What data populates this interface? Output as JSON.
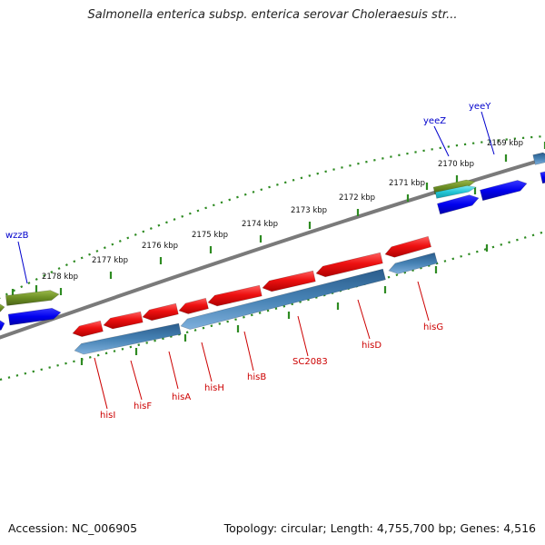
{
  "title": "Salmonella enterica subsp. enterica serovar Choleraesuis str...",
  "accession": "Accession: NC_006905",
  "summary": "Topology: circular; Length: 4,755,700 bp; Genes: 4,516",
  "colors": {
    "backbone": "#808080",
    "tick": "#2e8b22",
    "forward_gene": "#0000ee",
    "olive_gene": "#6b8e23",
    "cyan_gene": "#22c6d6",
    "reverse_gene": "#ee1111",
    "reverse_cds": "#4682b4",
    "label_blue": "#0000cc",
    "label_red": "#cc0000"
  },
  "scale_labels": [
    "2178 kbp",
    "2177 kbp",
    "2176 kbp",
    "2175 kbp",
    "2174 kbp",
    "2173 kbp",
    "2172 kbp",
    "2171 kbp",
    "2170 kbp",
    "2169 kbp"
  ],
  "forward_gene_labels": [
    "wzzB",
    "yeeZ",
    "yeeY"
  ],
  "reverse_gene_labels": [
    "hisI",
    "hisF",
    "hisA",
    "hisH",
    "hisB",
    "SC2083",
    "hisD",
    "hisG"
  ]
}
